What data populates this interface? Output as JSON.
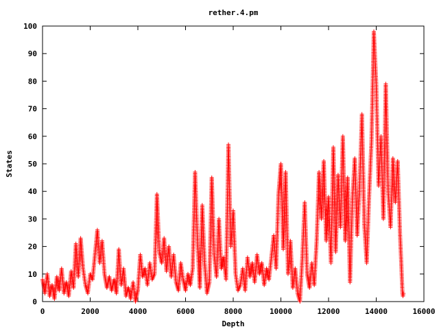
{
  "chart_data": {
    "type": "scatter",
    "title": "rether.4.pm",
    "xlabel": "Depth",
    "ylabel": "States",
    "xlim": [
      0,
      16000
    ],
    "ylim": [
      0,
      100
    ],
    "x_ticks": [
      "0",
      "2000",
      "4000",
      "6000",
      "8000",
      "10000",
      "12000",
      "14000",
      "16000"
    ],
    "y_ticks": [
      "0",
      "10",
      "20",
      "30",
      "40",
      "50",
      "60",
      "70",
      "80",
      "90",
      "100"
    ],
    "grid": false,
    "marker": "+",
    "series": [
      {
        "color": "#ff0000",
        "points": [
          [
            0,
            8
          ],
          [
            100,
            3
          ],
          [
            200,
            10
          ],
          [
            300,
            2
          ],
          [
            400,
            6
          ],
          [
            500,
            1
          ],
          [
            600,
            9
          ],
          [
            700,
            4
          ],
          [
            800,
            12
          ],
          [
            900,
            3
          ],
          [
            1000,
            7
          ],
          [
            1100,
            2
          ],
          [
            1200,
            11
          ],
          [
            1300,
            5
          ],
          [
            1400,
            21
          ],
          [
            1500,
            9
          ],
          [
            1600,
            23
          ],
          [
            1700,
            12
          ],
          [
            1800,
            6
          ],
          [
            1900,
            3
          ],
          [
            2000,
            10
          ],
          [
            2100,
            8
          ],
          [
            2200,
            17
          ],
          [
            2300,
            26
          ],
          [
            2400,
            14
          ],
          [
            2500,
            22
          ],
          [
            2600,
            10
          ],
          [
            2700,
            5
          ],
          [
            2800,
            9
          ],
          [
            2900,
            4
          ],
          [
            3000,
            8
          ],
          [
            3100,
            3
          ],
          [
            3200,
            19
          ],
          [
            3300,
            6
          ],
          [
            3400,
            12
          ],
          [
            3500,
            2
          ],
          [
            3600,
            5
          ],
          [
            3700,
            1
          ],
          [
            3800,
            7
          ],
          [
            3900,
            0
          ],
          [
            4000,
            4
          ],
          [
            4100,
            17
          ],
          [
            4200,
            9
          ],
          [
            4300,
            12
          ],
          [
            4400,
            6
          ],
          [
            4500,
            14
          ],
          [
            4600,
            8
          ],
          [
            4700,
            10
          ],
          [
            4800,
            39
          ],
          [
            4900,
            18
          ],
          [
            5000,
            14
          ],
          [
            5100,
            23
          ],
          [
            5200,
            11
          ],
          [
            5300,
            20
          ],
          [
            5400,
            9
          ],
          [
            5500,
            17
          ],
          [
            5600,
            7
          ],
          [
            5700,
            4
          ],
          [
            5800,
            14
          ],
          [
            5900,
            8
          ],
          [
            6000,
            4
          ],
          [
            6100,
            10
          ],
          [
            6200,
            6
          ],
          [
            6300,
            12
          ],
          [
            6400,
            47
          ],
          [
            6500,
            22
          ],
          [
            6600,
            5
          ],
          [
            6700,
            35
          ],
          [
            6800,
            14
          ],
          [
            6900,
            3
          ],
          [
            7000,
            7
          ],
          [
            7100,
            45
          ],
          [
            7200,
            17
          ],
          [
            7300,
            9
          ],
          [
            7400,
            30
          ],
          [
            7500,
            12
          ],
          [
            7600,
            16
          ],
          [
            7700,
            8
          ],
          [
            7800,
            57
          ],
          [
            7900,
            20
          ],
          [
            8000,
            33
          ],
          [
            8100,
            10
          ],
          [
            8200,
            4
          ],
          [
            8300,
            6
          ],
          [
            8400,
            12
          ],
          [
            8500,
            4
          ],
          [
            8600,
            16
          ],
          [
            8700,
            9
          ],
          [
            8800,
            14
          ],
          [
            8900,
            7
          ],
          [
            9000,
            17
          ],
          [
            9100,
            10
          ],
          [
            9200,
            14
          ],
          [
            9300,
            6
          ],
          [
            9400,
            12
          ],
          [
            9500,
            8
          ],
          [
            9600,
            16
          ],
          [
            9700,
            24
          ],
          [
            9800,
            12
          ],
          [
            9900,
            39
          ],
          [
            10000,
            50
          ],
          [
            10100,
            19
          ],
          [
            10200,
            47
          ],
          [
            10300,
            10
          ],
          [
            10400,
            22
          ],
          [
            10500,
            5
          ],
          [
            10600,
            12
          ],
          [
            10700,
            3
          ],
          [
            10800,
            0
          ],
          [
            10900,
            16
          ],
          [
            11000,
            36
          ],
          [
            11100,
            10
          ],
          [
            11200,
            5
          ],
          [
            11300,
            14
          ],
          [
            11400,
            6
          ],
          [
            11500,
            22
          ],
          [
            11600,
            47
          ],
          [
            11700,
            30
          ],
          [
            11800,
            51
          ],
          [
            11900,
            22
          ],
          [
            12000,
            38
          ],
          [
            12100,
            14
          ],
          [
            12200,
            56
          ],
          [
            12300,
            18
          ],
          [
            12400,
            46
          ],
          [
            12500,
            27
          ],
          [
            12600,
            60
          ],
          [
            12700,
            22
          ],
          [
            12800,
            45
          ],
          [
            12900,
            7
          ],
          [
            13000,
            37
          ],
          [
            13100,
            52
          ],
          [
            13200,
            24
          ],
          [
            13300,
            41
          ],
          [
            13400,
            68
          ],
          [
            13500,
            28
          ],
          [
            13600,
            14
          ],
          [
            13700,
            38
          ],
          [
            13800,
            58
          ],
          [
            13900,
            98
          ],
          [
            14000,
            79
          ],
          [
            14100,
            42
          ],
          [
            14200,
            60
          ],
          [
            14300,
            30
          ],
          [
            14400,
            79
          ],
          [
            14500,
            40
          ],
          [
            14600,
            27
          ],
          [
            14700,
            52
          ],
          [
            14800,
            36
          ],
          [
            14900,
            51
          ],
          [
            15000,
            24
          ],
          [
            15050,
            14
          ],
          [
            15100,
            3
          ],
          [
            15120,
            2
          ],
          [
            15140,
            3
          ]
        ]
      }
    ]
  }
}
